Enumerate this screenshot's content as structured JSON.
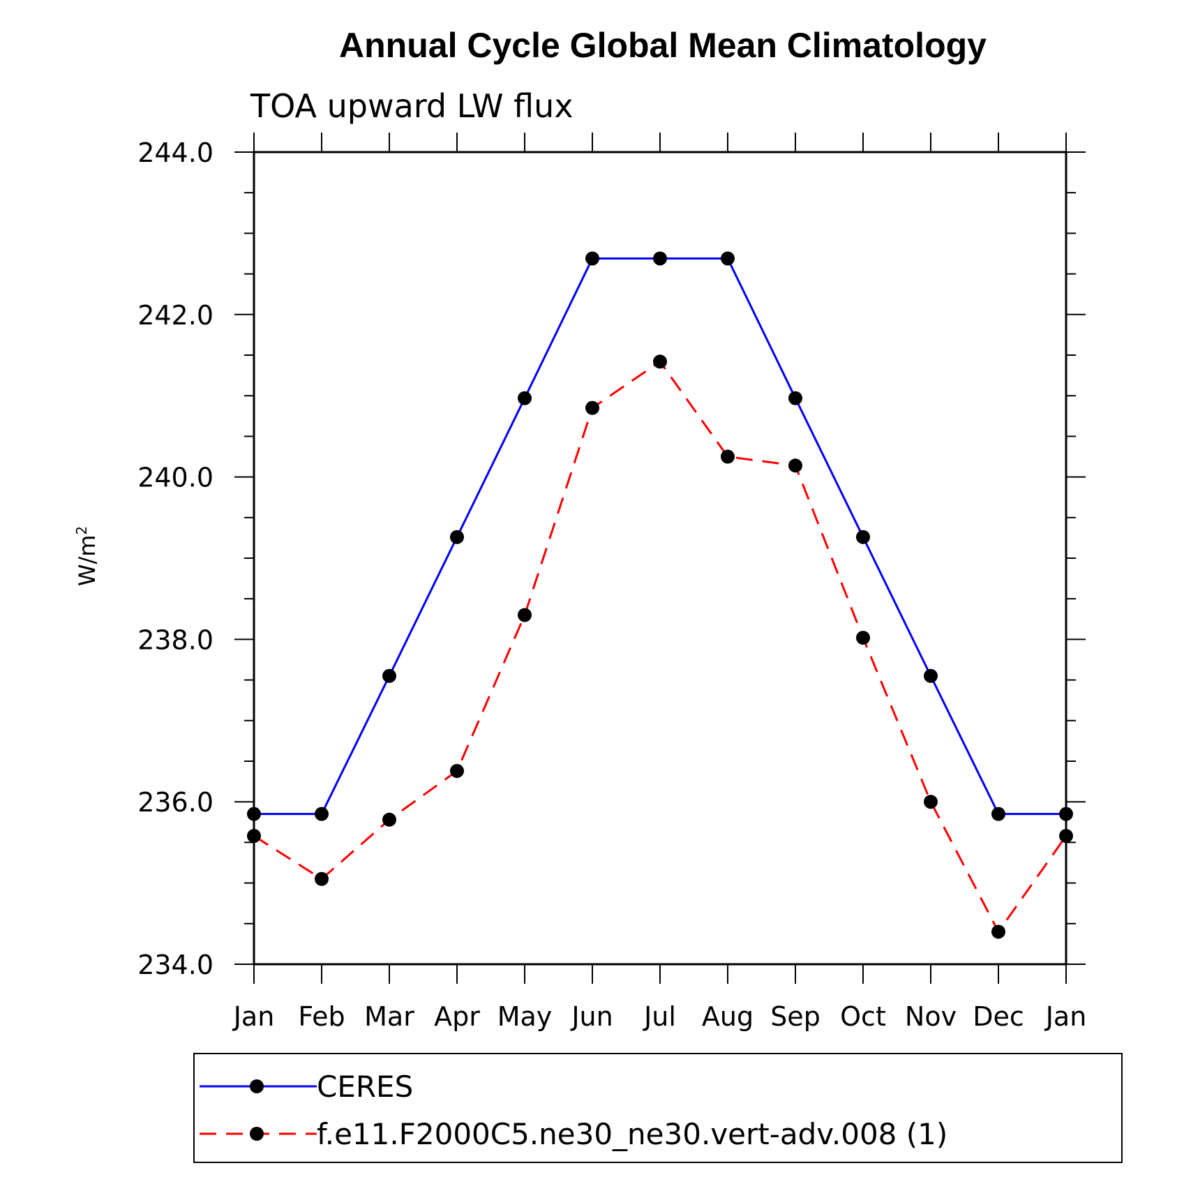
{
  "chart_data": {
    "type": "line",
    "title": "Annual Cycle Global Mean Climatology",
    "subtitle": "TOA upward LW flux",
    "ylabel": "W/m",
    "ylabel_superscript": "2",
    "xlabel": "",
    "categories": [
      "Jan",
      "Feb",
      "Mar",
      "Apr",
      "May",
      "Jun",
      "Jul",
      "Aug",
      "Sep",
      "Oct",
      "Nov",
      "Dec",
      "Jan"
    ],
    "ylim": [
      234.0,
      244.0
    ],
    "yticks": [
      "234.0",
      "236.0",
      "238.0",
      "240.0",
      "242.0",
      "244.0"
    ],
    "grid": false,
    "legend_position": "bottom",
    "series": [
      {
        "name": "CERES",
        "color": "#0000ff",
        "dash": "solid",
        "marker": "filled-circle",
        "values": [
          235.85,
          235.85,
          237.55,
          239.26,
          240.97,
          242.69,
          242.69,
          242.69,
          240.97,
          239.26,
          237.55,
          235.85,
          235.85
        ]
      },
      {
        "name": "f.e11.F2000C5.ne30_ne30.vert-adv.008 (1)",
        "color": "#ff0000",
        "dash": "dashed",
        "marker": "filled-circle",
        "values": [
          235.58,
          235.05,
          235.78,
          236.38,
          238.3,
          240.85,
          241.42,
          240.25,
          240.14,
          238.02,
          236.0,
          234.4,
          235.58
        ]
      }
    ]
  }
}
